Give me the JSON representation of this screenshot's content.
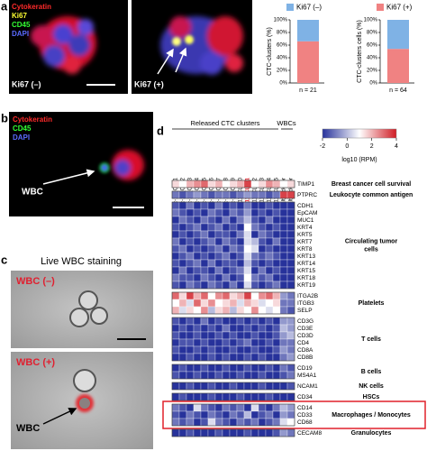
{
  "panel_letters": [
    "a",
    "b",
    "c",
    "d"
  ],
  "panel_a": {
    "images": [
      {
        "stains": [
          {
            "text": "Cytokeratin",
            "color": "#ff2a2a"
          },
          {
            "text": "Ki67",
            "color": "#ffff33"
          },
          {
            "text": "CD45",
            "color": "#33ff33"
          },
          {
            "text": "DAPI",
            "color": "#5b6bff"
          }
        ],
        "label": "Ki67 (–)"
      },
      {
        "label": "Ki67 (+)"
      }
    ],
    "chart": {
      "type": "bar",
      "stacked": true,
      "categories": [
        "n = 21",
        "n = 64"
      ],
      "y_labels": [
        "CTC-clusters (%)",
        "CTC-clusters cells (%)"
      ],
      "series": [
        {
          "name": "Ki67 (–)",
          "color": "#7fb2e5",
          "values": [
            34,
            46
          ]
        },
        {
          "name": "Ki67 (+)",
          "color": "#f08282",
          "values": [
            66,
            54
          ]
        }
      ],
      "ylim": [
        0,
        100
      ],
      "yticks": [
        {
          "value": 0,
          "label": "0%"
        },
        {
          "value": 20,
          "label": "20%"
        },
        {
          "value": 40,
          "label": "40%"
        },
        {
          "value": 60,
          "label": "60%"
        },
        {
          "value": 80,
          "label": "80%"
        },
        {
          "value": 100,
          "label": "100%"
        }
      ]
    }
  },
  "panel_b": {
    "stains": [
      {
        "text": "Cytokeratin",
        "color": "#ff2a2a"
      },
      {
        "text": "CD45",
        "color": "#33ff33"
      },
      {
        "text": "DAPI",
        "color": "#5b6bff"
      }
    ],
    "arrow_label": "WBC"
  },
  "panel_c": {
    "title": "Live WBC staining",
    "images": [
      {
        "label": "WBC (–)"
      },
      {
        "label": "WBC (+)",
        "arrow_label": "WBC"
      }
    ]
  },
  "panel_d": {
    "type": "heatmap",
    "header_clusters": "Released CTC clusters",
    "header_wbcs": "WBCs",
    "columns": [
      "Brx-11_CL#1",
      "Brx-11_CL#2",
      "Brx-11_CL#3",
      "Brx-11_CL#4",
      "Brx-11_CL#5",
      "Brx-11_CL#6",
      "Brx-11_CL#7",
      "Brx-11_CL#8",
      "Brx-11_CL#9",
      "Brx-11_CL#10",
      {
        "text": "Brx-11_CL#11",
        "color": "#e0202a"
      },
      "Brx-11_CL#12",
      "Brx-11_CL#13",
      "Brx-11_CL#14",
      "Brx-11_CL#15",
      "Healthy donor",
      "Healthy donor"
    ],
    "colorbar": {
      "label": "log10 (RPM)",
      "lim": [
        -2,
        4
      ],
      "ticks": [
        -2,
        0,
        2,
        4
      ],
      "colors": [
        "#27329b",
        "#ffffff",
        "#d01c24"
      ]
    },
    "groups": [
      {
        "label": [
          "Breast cancer cell survival"
        ],
        "genes": [
          "TIMP1"
        ],
        "values": [
          [
            1.5,
            1,
            2,
            2.5,
            3,
            1.5,
            2,
            1,
            1.5,
            2,
            3.5,
            1,
            1.5,
            2.5,
            2,
            1,
            1.5
          ]
        ]
      },
      {
        "label": [
          "Leukocyte common antigen"
        ],
        "genes": [
          "PTPRC"
        ],
        "values": [
          [
            -1,
            -1.5,
            -1,
            -0.5,
            -1,
            -1.5,
            -1,
            -1,
            -1.5,
            -1,
            -0.5,
            -1,
            -1,
            -1.5,
            -1,
            3.5,
            3.5
          ]
        ]
      },
      {
        "label": [
          "Circulating tumor",
          "cells"
        ],
        "genes": [
          "CDH1",
          "EpCAM",
          "MUC1",
          "KRT4",
          "KRT5",
          "KRT7",
          "KRT8",
          "KRT13",
          "KRT14",
          "KRT15",
          "KRT18",
          "KRT19"
        ],
        "values": [
          [
            -1.5,
            -2,
            -1,
            -2,
            -1.5,
            -2,
            -1,
            -2,
            -1.5,
            -2,
            -1,
            -2,
            -2,
            -1.5,
            -2,
            -2,
            -2
          ],
          [
            -1,
            -1.5,
            -2,
            -1.5,
            -2,
            -1,
            -1.5,
            -2,
            -1,
            -1.5,
            -0.5,
            -2,
            -1.5,
            -2,
            -1.5,
            -2,
            -2
          ],
          [
            -2,
            -1,
            -1.5,
            -2,
            -1,
            -1.5,
            -2,
            -1,
            -2,
            -1,
            0,
            -1.5,
            -2,
            -1,
            -2,
            -2,
            -2
          ],
          [
            -1.5,
            -2,
            -1.5,
            -1,
            -2,
            -1.5,
            -1,
            -2,
            -1.5,
            -2,
            1,
            -1,
            -1.5,
            -2,
            -1.5,
            -2,
            -2
          ],
          [
            -2,
            -1.5,
            -2,
            -1.5,
            -1,
            -2,
            -1.5,
            -1.5,
            -2,
            -1,
            0.5,
            -2,
            -1,
            -1.5,
            -2,
            -2,
            -2
          ],
          [
            -1,
            -2,
            -1.5,
            -2,
            -1.5,
            -1,
            -2,
            -1,
            -1.5,
            -2,
            0.5,
            0,
            -1.5,
            -2,
            -1,
            -2,
            -2
          ],
          [
            -1.5,
            -1,
            -2,
            -1.5,
            -2,
            -1.5,
            -1,
            -2,
            -1,
            -1.5,
            1,
            0.5,
            -2,
            -1.5,
            -2,
            -2,
            -2
          ],
          [
            -2,
            -1.5,
            -1,
            -2,
            -1.5,
            -2,
            -1.5,
            -1,
            -2,
            -1.5,
            0.5,
            -1,
            -1.5,
            -1,
            -1.5,
            -2,
            -2
          ],
          [
            -1.5,
            -2,
            -1.5,
            -1,
            -2,
            -1,
            -2,
            -1.5,
            -1.5,
            -2,
            0,
            -1.5,
            -2,
            -1.5,
            -2,
            -2,
            -2
          ],
          [
            -2,
            -1,
            -2,
            -1.5,
            -1.5,
            -2,
            -1,
            -2,
            -1.5,
            -1,
            0.5,
            -2,
            -1,
            -2,
            -1.5,
            -2,
            -2
          ],
          [
            -1,
            -1.5,
            -1.5,
            -2,
            -1,
            -1.5,
            -2,
            -1,
            -2,
            -1.5,
            1,
            -1,
            -1.5,
            -1,
            -2,
            -2,
            -2
          ],
          [
            -1.5,
            -2,
            -1,
            -1.5,
            -2,
            -1,
            -1.5,
            -2,
            -1,
            -2,
            0.5,
            -1.5,
            -2,
            -1.5,
            -1,
            -2,
            -2
          ]
        ]
      },
      {
        "label": [
          "Platelets"
        ],
        "genes": [
          "ITGA2B",
          "ITGB3",
          "SELP"
        ],
        "values": [
          [
            3,
            1.5,
            3.5,
            2,
            3,
            1,
            2.5,
            3,
            1.5,
            2,
            3.5,
            1,
            2.5,
            3,
            2,
            -0.5,
            -1
          ],
          [
            1,
            2,
            0.5,
            3,
            1.5,
            2.5,
            1,
            1.5,
            2,
            0.5,
            2,
            1.5,
            0.5,
            1,
            1.5,
            -1,
            -1
          ],
          [
            2,
            0.5,
            1.5,
            1,
            2.5,
            0,
            1.5,
            2,
            0,
            1.5,
            1,
            2.5,
            1,
            0.5,
            1,
            -1,
            -1.5
          ]
        ]
      },
      {
        "label": [
          "T cells"
        ],
        "genes": [
          "CD3G",
          "CD3E",
          "CD3D",
          "CD4",
          "CD8A",
          "CD8B"
        ],
        "values": [
          [
            -1.5,
            -2,
            -1.5,
            -2,
            -1,
            -2,
            -1.5,
            -2,
            -2,
            -1.5,
            -2,
            -1.5,
            -2,
            -1.5,
            -2,
            -0.5,
            -0.5
          ],
          [
            -2,
            -1.5,
            -2,
            -1.5,
            -2,
            -1.5,
            -2,
            -1,
            -2,
            -2,
            -1.5,
            -2,
            -1.5,
            -2,
            -1.5,
            0,
            -0.5
          ],
          [
            -1.5,
            -2,
            -2,
            -1.5,
            -2,
            -2,
            -1.5,
            -2,
            -1.5,
            -2,
            -2,
            -1.5,
            -2,
            -2,
            -1.5,
            -0.5,
            0
          ],
          [
            -2,
            -1.5,
            -1.5,
            -2,
            -1.5,
            -2,
            -2,
            -1.5,
            -2,
            -1.5,
            -1,
            -2,
            -2,
            -1.5,
            -2,
            -1,
            -1
          ],
          [
            -1.5,
            -2,
            -2,
            -1.5,
            -2,
            -1.5,
            -2,
            -2,
            -1.5,
            -2,
            -2,
            -1.5,
            -2,
            -2,
            -1.5,
            -0.5,
            -1
          ],
          [
            -2,
            -2,
            -1.5,
            -2,
            -2,
            -1.5,
            -2,
            -1.5,
            -2,
            -2,
            -1.5,
            -2,
            -1.5,
            -2,
            -2,
            -1,
            -0.5
          ]
        ]
      },
      {
        "label": [
          "B cells"
        ],
        "genes": [
          "CD19",
          "MS4A1"
        ],
        "values": [
          [
            -2,
            -1.5,
            -2,
            -2,
            -1.5,
            -2,
            -2,
            -1.5,
            -2,
            -2,
            -1.5,
            -2,
            -2,
            -1.5,
            -2,
            -1,
            -1.5
          ],
          [
            -1.5,
            -2,
            -2,
            -1.5,
            -2,
            -2,
            -1.5,
            -2,
            -2,
            -1.5,
            -2,
            -2,
            -1.5,
            -2,
            -2,
            -1.5,
            -1
          ]
        ]
      },
      {
        "label": [
          "NK cells"
        ],
        "genes": [
          "NCAM1"
        ],
        "values": [
          [
            -2,
            -2,
            -1.5,
            -2,
            -2,
            -1.5,
            -2,
            -2,
            -1.5,
            -2,
            -2,
            -2,
            -1.5,
            -2,
            -2,
            -2,
            -1.5
          ]
        ]
      },
      {
        "label": [
          "HSCs"
        ],
        "genes": [
          "CD34"
        ],
        "values": [
          [
            -2,
            -1.5,
            -2,
            -2,
            -2,
            -1.5,
            -2,
            -2,
            -2,
            -1.5,
            -2,
            -2,
            -2,
            -1.5,
            -2,
            -2,
            -2
          ]
        ]
      },
      {
        "label": [
          "Macrophages / Monocytes"
        ],
        "box_color": "#e0202a",
        "genes": [
          "CD14",
          "CD33",
          "CD68"
        ],
        "values": [
          [
            -1,
            -1.5,
            -2,
            0.5,
            -1,
            -1.5,
            -2,
            -1,
            -1.5,
            -1,
            -2,
            0.5,
            -1.5,
            -2,
            -1,
            0,
            -0.5
          ],
          [
            -1.5,
            -2,
            -1,
            -1.5,
            -2,
            -1,
            -1.5,
            -2,
            -1,
            -1.5,
            0,
            -2,
            -1.5,
            -1,
            -2,
            -0.5,
            -1
          ],
          [
            -1,
            -1.5,
            -1,
            -2,
            -1.5,
            0.5,
            -1,
            -1.5,
            -2,
            -1,
            -1.5,
            -1,
            -2,
            -1.5,
            -1,
            0.5,
            1
          ]
        ]
      },
      {
        "label": [
          "Granulocytes"
        ],
        "genes": [
          "CECAM8"
        ],
        "values": [
          [
            -2,
            -2,
            -1.5,
            -2,
            -2,
            -2,
            -1.5,
            -2,
            -2,
            -2,
            -1.5,
            -2,
            -2,
            -2,
            -1.5,
            -0.5,
            -1
          ]
        ]
      }
    ]
  }
}
